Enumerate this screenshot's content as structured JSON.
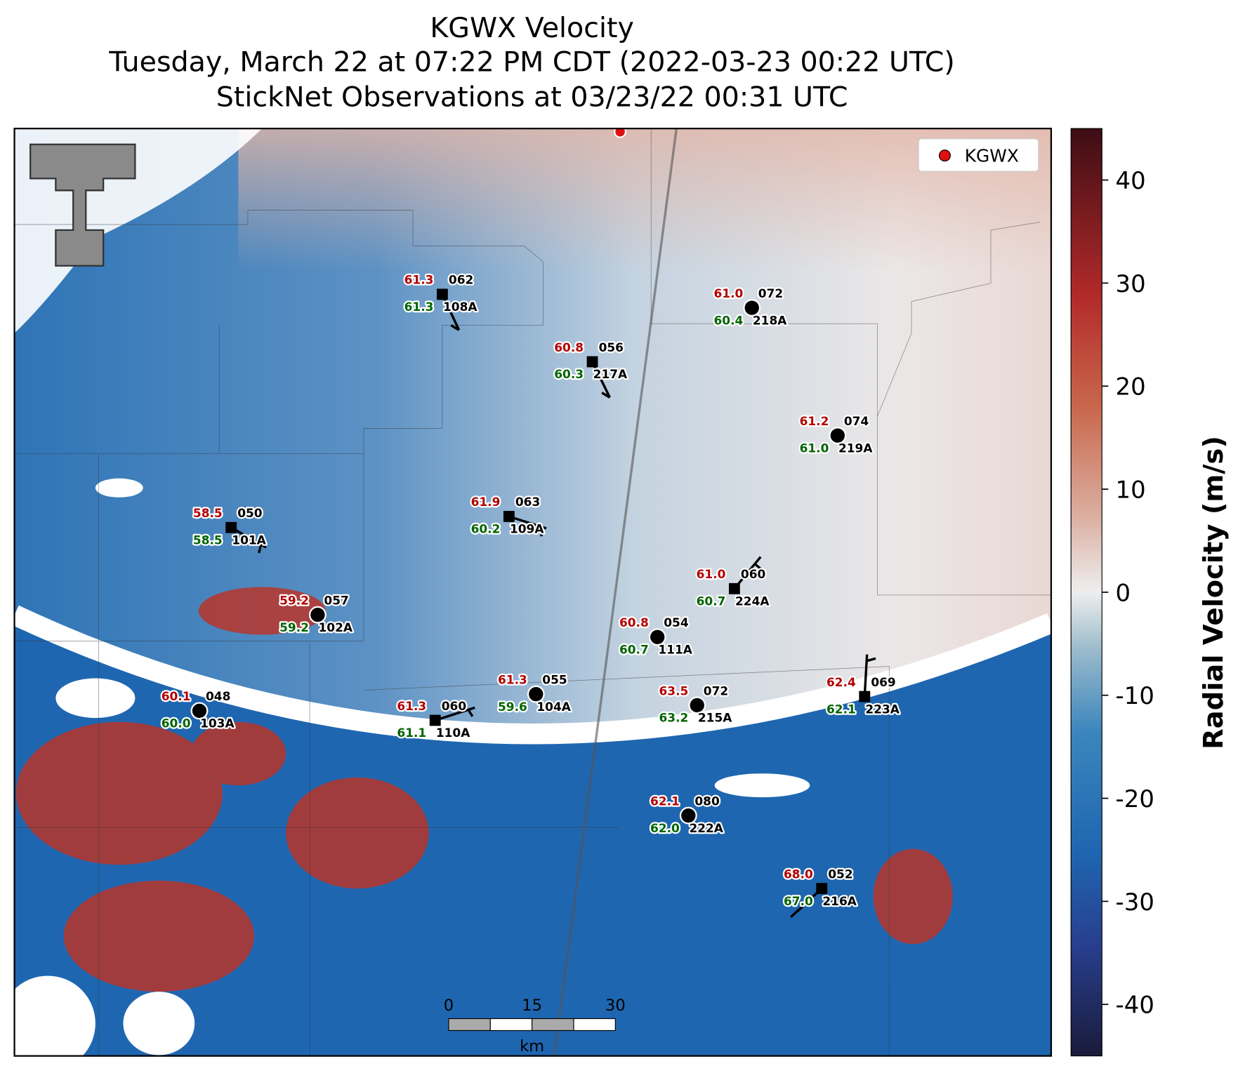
{
  "title": {
    "lines": [
      "KGWX Velocity",
      "Tuesday, March 22 at 07:22 PM CDT (2022-03-23 00:22 UTC)",
      "StickNet Observations at 03/23/22 00:31 UTC"
    ]
  },
  "legend": {
    "label": "KGWX"
  },
  "colorbar": {
    "label": "Radial Velocity (m/s)",
    "ylim": [
      -45,
      45
    ],
    "yticks": [
      -40,
      -30,
      -20,
      -10,
      0,
      10,
      20,
      30,
      40
    ]
  },
  "scale_bar": {
    "ticks": [
      0,
      15,
      30
    ],
    "unit": "km"
  },
  "stations": [
    {
      "id": "108A",
      "temperature": "61.3",
      "dewpoint": "61.3",
      "code": "062",
      "marker": "square"
    },
    {
      "id": "218A",
      "temperature": "61.0",
      "dewpoint": "60.4",
      "code": "072",
      "marker": "circle"
    },
    {
      "id": "217A",
      "temperature": "60.8",
      "dewpoint": "60.3",
      "code": "056",
      "marker": "square"
    },
    {
      "id": "219A",
      "temperature": "61.2",
      "dewpoint": "61.0",
      "code": "074",
      "marker": "circle"
    },
    {
      "id": "101A",
      "temperature": "58.5",
      "dewpoint": "58.5",
      "code": "050",
      "marker": "square"
    },
    {
      "id": "109A",
      "temperature": "61.9",
      "dewpoint": "60.2",
      "code": "063",
      "marker": "square"
    },
    {
      "id": "224A",
      "temperature": "61.0",
      "dewpoint": "60.7",
      "code": "060",
      "marker": "square"
    },
    {
      "id": "102A",
      "temperature": "59.2",
      "dewpoint": "59.2",
      "code": "057",
      "marker": "circle"
    },
    {
      "id": "111A",
      "temperature": "60.8",
      "dewpoint": "60.7",
      "code": "054",
      "marker": "circle"
    },
    {
      "id": "104A",
      "temperature": "61.3",
      "dewpoint": "59.6",
      "code": "055",
      "marker": "circle"
    },
    {
      "id": "215A",
      "temperature": "63.5",
      "dewpoint": "63.2",
      "code": "072",
      "marker": "circle"
    },
    {
      "id": "223A",
      "temperature": "62.4",
      "dewpoint": "62.1",
      "code": "069",
      "marker": "square"
    },
    {
      "id": "103A",
      "temperature": "60.1",
      "dewpoint": "60.0",
      "code": "048",
      "marker": "circle"
    },
    {
      "id": "110A",
      "temperature": "61.3",
      "dewpoint": "61.1",
      "code": "060",
      "marker": "square"
    },
    {
      "id": "222A",
      "temperature": "62.1",
      "dewpoint": "62.0",
      "code": "080",
      "marker": "circle"
    },
    {
      "id": "216A",
      "temperature": "68.0",
      "dewpoint": "67.0",
      "code": "052",
      "marker": "square"
    }
  ]
}
